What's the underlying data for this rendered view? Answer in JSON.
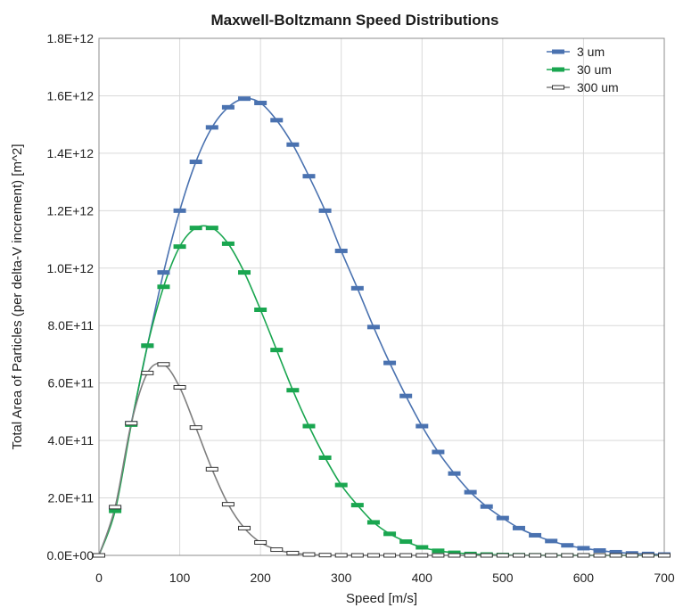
{
  "chart_data": {
    "type": "line",
    "title": "Maxwell-Boltzmann Speed Distributions",
    "xlabel": "Speed  [m/s]",
    "ylabel": "Total Area of Particles (per delta-V increment) [m^2]",
    "xlim": [
      0,
      700
    ],
    "ylim": [
      0,
      1800000000000.0
    ],
    "x_ticks": [
      0,
      100,
      200,
      300,
      400,
      500,
      600,
      700
    ],
    "x_tick_labels": [
      "0",
      "100",
      "200",
      "300",
      "400",
      "500",
      "600",
      "700"
    ],
    "y_ticks": [
      0,
      200000000000.0,
      400000000000.0,
      600000000000.0,
      800000000000.0,
      1000000000000.0,
      1200000000000.0,
      1400000000000.0,
      1600000000000.0,
      1800000000000.0
    ],
    "y_tick_labels": [
      "0.0E+00",
      "2.0E+11",
      "4.0E+11",
      "6.0E+11",
      "8.0E+11",
      "1.0E+12",
      "1.2E+12",
      "1.4E+12",
      "1.6E+12",
      "1.8E+12"
    ],
    "grid": true,
    "legend_position": "top-right",
    "series": [
      {
        "name": "3 um",
        "color": "#4a72b0",
        "marker_fill": "#4a72b0",
        "x": [
          0,
          20,
          40,
          60,
          80,
          100,
          120,
          140,
          160,
          180,
          200,
          220,
          240,
          260,
          280,
          300,
          320,
          340,
          360,
          380,
          400,
          420,
          440,
          460,
          480,
          500,
          520,
          540,
          560,
          580,
          600,
          620,
          640,
          660,
          680,
          700
        ],
        "values": [
          0,
          165000000000.0,
          460000000000.0,
          730000000000.0,
          985000000000.0,
          1200000000000.0,
          1370000000000.0,
          1490000000000.0,
          1560000000000.0,
          1590000000000.0,
          1575000000000.0,
          1515000000000.0,
          1430000000000.0,
          1320000000000.0,
          1200000000000.0,
          1060000000000.0,
          930000000000.0,
          795000000000.0,
          670000000000.0,
          555000000000.0,
          450000000000.0,
          360000000000.0,
          285000000000.0,
          220000000000.0,
          170000000000.0,
          130000000000.0,
          95000000000.0,
          70000000000.0,
          50000000000.0,
          35000000000.0,
          25000000000.0,
          17000000000.0,
          11000000000.0,
          7000000000.0,
          5000000000.0,
          3000000000.0
        ]
      },
      {
        "name": "30 um",
        "color": "#1aa650",
        "marker_fill": "#1aa650",
        "x": [
          0,
          20,
          40,
          60,
          80,
          100,
          120,
          140,
          160,
          180,
          200,
          220,
          240,
          260,
          280,
          300,
          320,
          340,
          360,
          380,
          400,
          420,
          440,
          460,
          480,
          500,
          520,
          540,
          560,
          580,
          600,
          620,
          640,
          660,
          680,
          700
        ],
        "values": [
          0,
          155000000000.0,
          455000000000.0,
          730000000000.0,
          935000000000.0,
          1075000000000.0,
          1140000000000.0,
          1140000000000.0,
          1085000000000.0,
          985000000000.0,
          855000000000.0,
          715000000000.0,
          575000000000.0,
          450000000000.0,
          340000000000.0,
          245000000000.0,
          175000000000.0,
          115000000000.0,
          75000000000.0,
          48000000000.0,
          28000000000.0,
          16000000000.0,
          9000000000.0,
          5000000000.0,
          3000000000.0,
          1500000000.0,
          800000000.0,
          400000000.0,
          200000000.0,
          100000000.0,
          50000000.0,
          20000000.0,
          10000000.0,
          5000000.0,
          2000000.0,
          1000000.0
        ]
      },
      {
        "name": "300 um",
        "color": "#7f7f7f",
        "marker_fill": "#ffffff",
        "x": [
          0,
          20,
          40,
          60,
          80,
          100,
          120,
          140,
          160,
          180,
          200,
          220,
          240,
          260,
          280,
          300,
          320,
          340,
          360,
          380,
          400,
          420,
          440,
          460,
          480,
          500,
          520,
          540,
          560,
          580,
          600,
          620,
          640,
          660,
          680,
          700
        ],
        "values": [
          0,
          168000000000.0,
          460000000000.0,
          635000000000.0,
          665000000000.0,
          585000000000.0,
          445000000000.0,
          300000000000.0,
          178000000000.0,
          95000000000.0,
          45000000000.0,
          20000000000.0,
          8000000000.0,
          3000000000.0,
          1000000000.0,
          300000000.0,
          100000000.0,
          30000000.0,
          10000000.0,
          3000000.0,
          1000000.0,
          300000.0,
          100000.0,
          0,
          0,
          0,
          0,
          0,
          0,
          0,
          0,
          0,
          0,
          0,
          0,
          0
        ]
      }
    ]
  }
}
